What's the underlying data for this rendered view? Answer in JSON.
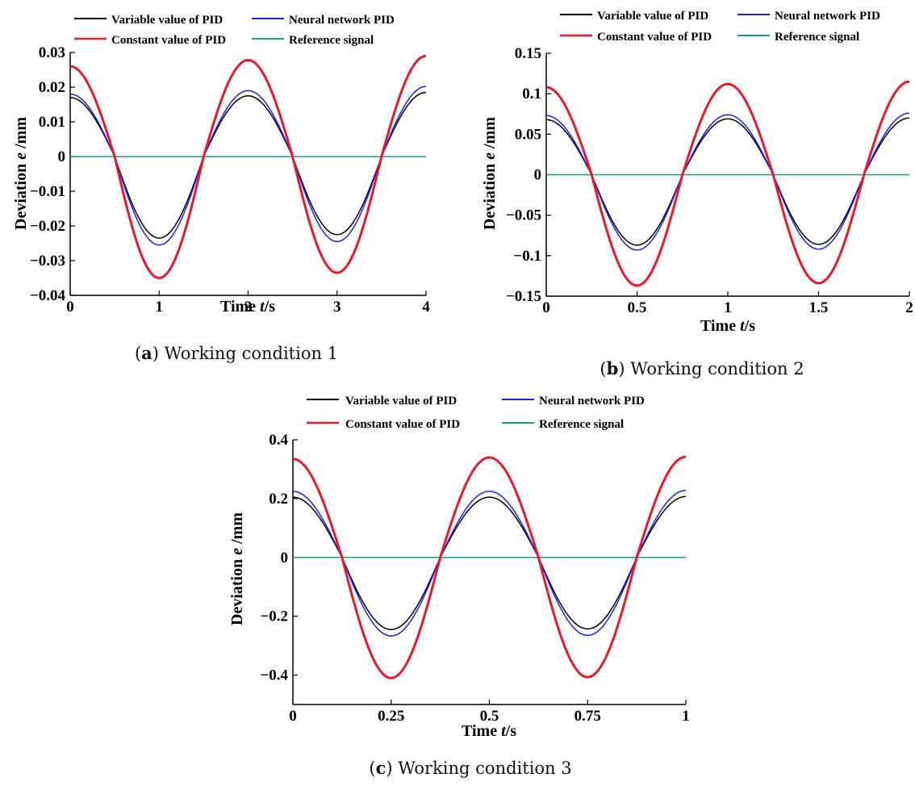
{
  "legend": {
    "variable": "Variable value of PID",
    "neural": "Neural network PID",
    "constant": "Constant value of PID",
    "reference": "Reference signal"
  },
  "colors": {
    "variable": "#000000",
    "neural": "#1f1fe6",
    "constant": "#e8192c",
    "reference": "#16a085"
  },
  "axis_titles": {
    "x_prefix": "Time ",
    "x_var": "t",
    "x_unit": "/s",
    "y_prefix": "Deviation ",
    "y_var": "e",
    "y_unit": " /mm"
  },
  "captions": {
    "a": {
      "letter": "a",
      "text": " Working condition 1"
    },
    "b": {
      "letter": "b",
      "text": " Working condition 2"
    },
    "c": {
      "letter": "c",
      "text": " Working condition 3"
    }
  },
  "chart_data": [
    {
      "type": "line",
      "panel": "a",
      "xlim": [
        0,
        4
      ],
      "ylim": [
        -0.04,
        0.03
      ],
      "xticks": [
        0,
        1,
        2,
        3,
        4
      ],
      "xtick_labels": [
        "0",
        "1",
        "2",
        "3",
        "4"
      ],
      "yticks": [
        0.03,
        0.02,
        0.01,
        0,
        -0.01,
        -0.02,
        -0.03,
        -0.04
      ],
      "ytick_labels": [
        "0.03",
        "0.02",
        "0.01",
        "0",
        "-0.01",
        "-0.02",
        "-0.03",
        "-0.04"
      ],
      "series": [
        {
          "name": "Variable value of PID",
          "color": "#000000",
          "x": [
            0,
            0.5,
            1,
            1.5,
            2,
            2.5,
            3,
            3.5,
            4
          ],
          "y": [
            0.017,
            0,
            -0.0235,
            0,
            0.0175,
            0,
            -0.0225,
            0,
            0.0185
          ]
        },
        {
          "name": "Neural network PID",
          "color": "#1f1fe6",
          "x": [
            0,
            0.5,
            1,
            1.5,
            2,
            2.5,
            3,
            3.5,
            4
          ],
          "y": [
            0.018,
            0,
            -0.0255,
            0,
            0.019,
            0,
            -0.0245,
            0,
            0.0202
          ]
        },
        {
          "name": "Constant value of PID",
          "color": "#e8192c",
          "x": [
            0,
            0.5,
            1,
            1.5,
            2,
            2.5,
            3,
            3.5,
            4
          ],
          "y": [
            0.026,
            0,
            -0.035,
            0,
            0.0278,
            0,
            -0.0335,
            0,
            0.029
          ]
        },
        {
          "name": "Reference signal",
          "color": "#16a085",
          "x": [
            0,
            4
          ],
          "y": [
            0,
            0
          ]
        }
      ]
    },
    {
      "type": "line",
      "panel": "b",
      "xlim": [
        0,
        2
      ],
      "ylim": [
        -0.15,
        0.15
      ],
      "xticks": [
        0,
        0.5,
        1,
        1.5,
        2
      ],
      "xtick_labels": [
        "0",
        "0.5",
        "1",
        "1.5",
        "2"
      ],
      "yticks": [
        0.15,
        0.1,
        0.05,
        0,
        -0.05,
        -0.1,
        -0.15
      ],
      "ytick_labels": [
        "0.15",
        "0.1",
        "0.05",
        "0",
        "-0.05",
        "-0.1",
        "-0.15"
      ],
      "series": [
        {
          "name": "Variable value of PID",
          "color": "#000000",
          "x": [
            0,
            0.25,
            0.5,
            0.75,
            1,
            1.25,
            1.5,
            1.75,
            2
          ],
          "y": [
            0.068,
            0,
            -0.087,
            0,
            0.069,
            0,
            -0.086,
            0,
            0.07
          ]
        },
        {
          "name": "Neural network PID",
          "color": "#1f1fe6",
          "x": [
            0,
            0.25,
            0.5,
            0.75,
            1,
            1.25,
            1.5,
            1.75,
            2
          ],
          "y": [
            0.073,
            0,
            -0.093,
            0,
            0.074,
            0,
            -0.092,
            0,
            0.076
          ]
        },
        {
          "name": "Constant value of PID",
          "color": "#e8192c",
          "x": [
            0,
            0.25,
            0.5,
            0.75,
            1,
            1.25,
            1.5,
            1.75,
            2
          ],
          "y": [
            0.108,
            0,
            -0.137,
            0,
            0.112,
            0,
            -0.134,
            0,
            0.115
          ]
        },
        {
          "name": "Reference signal",
          "color": "#16a085",
          "x": [
            0,
            2
          ],
          "y": [
            0,
            0
          ]
        }
      ]
    },
    {
      "type": "line",
      "panel": "c",
      "xlim": [
        0,
        1
      ],
      "ylim": [
        -0.5,
        0.4
      ],
      "xticks": [
        0,
        0.25,
        0.5,
        0.75,
        1
      ],
      "xtick_labels": [
        "0",
        "0.25",
        "0.5",
        "0.75",
        "1"
      ],
      "yticks": [
        0.4,
        0.2,
        0,
        -0.2,
        -0.4
      ],
      "ytick_labels": [
        "0.4",
        "0.2",
        "0",
        "-0.2",
        "-0.4"
      ],
      "series": [
        {
          "name": "Variable value of PID",
          "color": "#000000",
          "x": [
            0,
            0.125,
            0.25,
            0.375,
            0.5,
            0.625,
            0.75,
            0.875,
            1
          ],
          "y": [
            0.205,
            0,
            -0.245,
            0,
            0.205,
            0,
            -0.243,
            0,
            0.207
          ]
        },
        {
          "name": "Neural network PID",
          "color": "#1f1fe6",
          "x": [
            0,
            0.125,
            0.25,
            0.375,
            0.5,
            0.625,
            0.75,
            0.875,
            1
          ],
          "y": [
            0.225,
            0,
            -0.267,
            0,
            0.225,
            0,
            -0.265,
            0,
            0.228
          ]
        },
        {
          "name": "Constant value of PID",
          "color": "#e8192c",
          "x": [
            0,
            0.125,
            0.25,
            0.375,
            0.5,
            0.625,
            0.75,
            0.875,
            1
          ],
          "y": [
            0.335,
            0,
            -0.41,
            0,
            0.34,
            0,
            -0.407,
            0,
            0.342
          ]
        },
        {
          "name": "Reference signal",
          "color": "#16a085",
          "x": [
            0,
            1
          ],
          "y": [
            0,
            0
          ]
        }
      ]
    }
  ]
}
